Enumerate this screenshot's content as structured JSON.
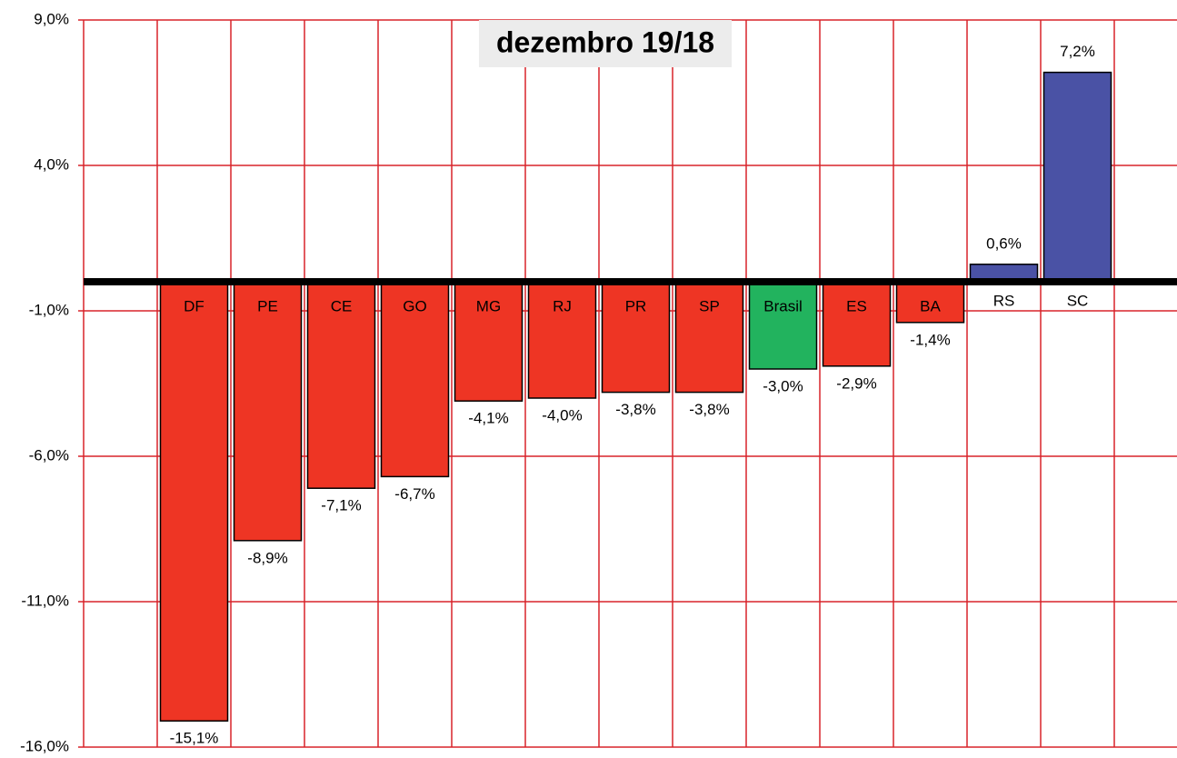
{
  "chart_data": {
    "type": "bar",
    "title": "dezembro 19/18",
    "categories": [
      null,
      "DF",
      "PE",
      "CE",
      "GO",
      "MG",
      "RJ",
      "PR",
      "SP",
      "Brasil",
      "ES",
      "BA",
      "RS",
      "SC"
    ],
    "values": [
      null,
      -15.1,
      -8.9,
      -7.1,
      -6.7,
      -4.1,
      -4.0,
      -3.8,
      -3.8,
      -3.0,
      -2.9,
      -1.4,
      0.6,
      7.2
    ],
    "value_labels": [
      null,
      "-15,1%",
      "-8,9%",
      "-7,1%",
      "-6,7%",
      "-4,1%",
      "-4,0%",
      "-3,8%",
      "-3,8%",
      "-3,0%",
      "-2,9%",
      "-1,4%",
      "0,6%",
      "7,2%"
    ],
    "colors": [
      null,
      "#ee3524",
      "#ee3524",
      "#ee3524",
      "#ee3524",
      "#ee3524",
      "#ee3524",
      "#ee3524",
      "#ee3524",
      "#22b35e",
      "#ee3524",
      "#ee3524",
      "#4a52a5",
      "#4a52a5"
    ],
    "ylim": [
      -16,
      9
    ],
    "yticks": [
      {
        "value": -16,
        "label": "-16,0%"
      },
      {
        "value": -11,
        "label": "-11,0%"
      },
      {
        "value": -6,
        "label": "-6,0%"
      },
      {
        "value": -1,
        "label": "-1,0%"
      },
      {
        "value": 4,
        "label": "4,0%"
      },
      {
        "value": 9,
        "label": "9,0%"
      }
    ],
    "grid": true
  }
}
